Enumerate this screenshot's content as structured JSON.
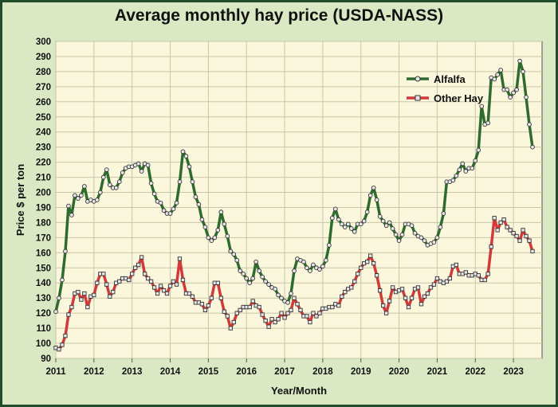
{
  "chart_data": {
    "type": "line",
    "title": "Average monthly hay price (USDA-NASS)",
    "xlabel": "Year/Month",
    "ylabel": "Price $ per ton",
    "xlim": [
      2011,
      2023.75
    ],
    "ylim": [
      90,
      300
    ],
    "y_ticks": [
      90,
      100,
      110,
      120,
      130,
      140,
      150,
      160,
      170,
      180,
      190,
      200,
      210,
      220,
      230,
      240,
      250,
      260,
      270,
      280,
      290,
      300
    ],
    "x_ticks": [
      "2011",
      "2012",
      "2013",
      "2014",
      "2015",
      "2016",
      "2017",
      "2018",
      "2019",
      "2020",
      "2021",
      "2022",
      "2023"
    ],
    "grid": true,
    "legend_position": "top-right",
    "x_start": 2011,
    "x_step": 0.08333,
    "colors": {
      "Alfalfa": "#2e6b2e",
      "Other Hay": "#d23a3a",
      "plot_bg": "#faf7dc",
      "frame_bg": "#dbe8c4"
    },
    "series": [
      {
        "name": "Alfalfa",
        "values": [
          121,
          130,
          142,
          161,
          191,
          185,
          198,
          196,
          198,
          204,
          194,
          195,
          194,
          195,
          200,
          210,
          215,
          205,
          203,
          203,
          207,
          213,
          216,
          217,
          217,
          218,
          219,
          214,
          219,
          218,
          206,
          199,
          194,
          193,
          188,
          186,
          186,
          189,
          193,
          207,
          227,
          224,
          217,
          207,
          197,
          192,
          182,
          177,
          170,
          168,
          170,
          175,
          187,
          179,
          171,
          161,
          159,
          155,
          148,
          146,
          143,
          140,
          143,
          154,
          148,
          144,
          141,
          139,
          137,
          136,
          132,
          130,
          128,
          127,
          133,
          148,
          156,
          155,
          154,
          150,
          148,
          152,
          150,
          149,
          151,
          155,
          165,
          183,
          189,
          182,
          179,
          177,
          179,
          176,
          174,
          179,
          179,
          181,
          187,
          198,
          203,
          195,
          184,
          181,
          178,
          180,
          176,
          172,
          168,
          172,
          179,
          179,
          178,
          173,
          171,
          170,
          168,
          165,
          166,
          167,
          170,
          177,
          186,
          207,
          207,
          208,
          211,
          215,
          219,
          214,
          216,
          216,
          221,
          228,
          257,
          245,
          246,
          276,
          275,
          278,
          281,
          268,
          268,
          263,
          266,
          268,
          287,
          280,
          263,
          245,
          230
        ]
      },
      {
        "name": "Other Hay",
        "values": [
          97,
          96,
          99,
          105,
          119,
          124,
          133,
          134,
          129,
          133,
          124,
          131,
          132,
          140,
          146,
          146,
          139,
          131,
          134,
          140,
          141,
          143,
          143,
          142,
          146,
          150,
          152,
          157,
          146,
          143,
          141,
          137,
          133,
          138,
          135,
          133,
          138,
          141,
          139,
          156,
          142,
          133,
          133,
          131,
          127,
          127,
          126,
          122,
          125,
          130,
          140,
          140,
          130,
          121,
          118,
          110,
          114,
          120,
          122,
          124,
          124,
          124,
          128,
          125,
          124,
          119,
          115,
          111,
          116,
          114,
          116,
          120,
          117,
          120,
          122,
          130,
          126,
          122,
          118,
          118,
          114,
          120,
          118,
          120,
          123,
          123,
          124,
          124,
          126,
          125,
          131,
          134,
          136,
          137,
          141,
          146,
          150,
          153,
          154,
          158,
          153,
          145,
          135,
          125,
          120,
          128,
          137,
          134,
          135,
          136,
          130,
          124,
          130,
          136,
          137,
          126,
          131,
          133,
          137,
          139,
          143,
          141,
          140,
          141,
          143,
          151,
          152,
          146,
          146,
          147,
          145,
          145,
          146,
          145,
          142,
          142,
          146,
          164,
          183,
          175,
          180,
          182,
          177,
          175,
          173,
          171,
          168,
          175,
          171,
          168,
          161
        ]
      }
    ]
  }
}
